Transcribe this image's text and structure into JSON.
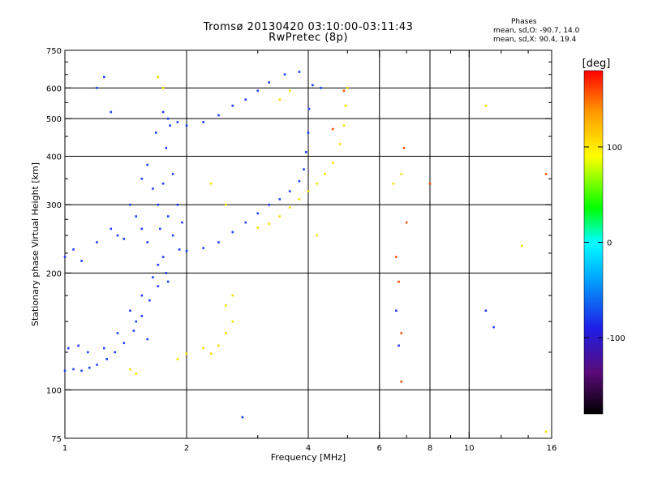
{
  "header": {
    "title_line1": "Tromsø 20130420 03:10:00-03:11:43",
    "title_line2": "RwPretec (8p)",
    "stats_heading": "Phases",
    "stats_o": "mean, sd,O: -90.7, 14.0",
    "stats_x": "mean, sd,X: 90.4, 19.4"
  },
  "chart_data": {
    "type": "scatter",
    "xlabel": "Frequency [MHz]",
    "ylabel": "Stationary phase Virtual Height [km]",
    "xscale": "log",
    "yscale": "log",
    "xlim": [
      1,
      16
    ],
    "ylim": [
      75,
      750
    ],
    "x_ticks": [
      1,
      2,
      4,
      6,
      8,
      10,
      16
    ],
    "y_ticks": [
      75,
      100,
      200,
      300,
      400,
      500,
      600,
      750
    ],
    "x_minor_ticks": [
      3,
      5,
      7,
      9,
      12,
      14
    ],
    "y_minor_ticks": [
      125,
      150,
      175,
      225,
      250,
      275,
      350,
      450,
      550,
      650,
      700
    ],
    "grid_x": [
      2,
      4,
      6,
      8,
      10
    ],
    "grid_y": [
      100,
      200,
      300,
      400,
      500,
      600
    ],
    "colorbar": {
      "label": "[deg]",
      "range": [
        -180,
        180
      ],
      "ticks": [
        100,
        0,
        -100
      ],
      "colormap": [
        "#000000",
        "#5a0a78",
        "#1e1ee6",
        "#00aaff",
        "#00ffff",
        "#00ff00",
        "#ffff00",
        "#ff9900",
        "#ff0000"
      ]
    },
    "series": [
      {
        "component": "O",
        "color": "#1e3cff",
        "traces": [
          {
            "segment": "low E-region trace",
            "points": [
              [
                1.0,
                112
              ],
              [
                1.05,
                113
              ],
              [
                1.1,
                112
              ],
              [
                1.15,
                114
              ],
              [
                1.2,
                116
              ],
              [
                1.27,
                120
              ],
              [
                1.33,
                125
              ],
              [
                1.4,
                132
              ],
              [
                1.48,
                142
              ],
              [
                1.55,
                155
              ],
              [
                1.62,
                170
              ],
              [
                1.7,
                185
              ],
              [
                1.78,
                200
              ]
            ]
          },
          {
            "segment": "lower trace cloud",
            "points": [
              [
                1.02,
                128
              ],
              [
                1.08,
                130
              ],
              [
                1.14,
                125
              ],
              [
                1.25,
                128
              ],
              [
                1.35,
                140
              ],
              [
                1.45,
                160
              ],
              [
                1.5,
                150
              ],
              [
                1.6,
                135
              ],
              [
                1.55,
                175
              ],
              [
                1.65,
                195
              ],
              [
                1.7,
                210
              ],
              [
                1.75,
                220
              ],
              [
                1.8,
                190
              ]
            ]
          },
          {
            "segment": "spread F cloud",
            "points": [
              [
                1.45,
                300
              ],
              [
                1.5,
                280
              ],
              [
                1.55,
                260
              ],
              [
                1.6,
                240
              ],
              [
                1.55,
                350
              ],
              [
                1.6,
                380
              ],
              [
                1.65,
                330
              ],
              [
                1.7,
                300
              ],
              [
                1.72,
                260
              ],
              [
                1.75,
                340
              ],
              [
                1.78,
                420
              ],
              [
                1.8,
                280
              ],
              [
                1.85,
                250
              ],
              [
                1.85,
                360
              ],
              [
                1.9,
                300
              ],
              [
                1.92,
                230
              ],
              [
                1.95,
                270
              ],
              [
                1.68,
                460
              ],
              [
                1.75,
                520
              ],
              [
                1.82,
                480
              ]
            ]
          },
          {
            "segment": "F2 O-mode trace",
            "points": [
              [
                2.0,
                228
              ],
              [
                2.2,
                232
              ],
              [
                2.4,
                240
              ],
              [
                2.6,
                255
              ],
              [
                2.8,
                270
              ],
              [
                3.0,
                285
              ],
              [
                3.2,
                300
              ],
              [
                3.4,
                310
              ],
              [
                3.6,
                325
              ],
              [
                3.8,
                345
              ],
              [
                3.9,
                370
              ],
              [
                3.95,
                410
              ],
              [
                4.0,
                460
              ],
              [
                4.02,
                530
              ]
            ]
          },
          {
            "segment": "upper echoes",
            "points": [
              [
                1.8,
                500
              ],
              [
                1.9,
                490
              ],
              [
                2.0,
                480
              ],
              [
                2.2,
                490
              ],
              [
                2.4,
                510
              ],
              [
                2.6,
                540
              ],
              [
                2.8,
                560
              ],
              [
                3.0,
                590
              ],
              [
                3.2,
                620
              ],
              [
                3.5,
                650
              ],
              [
                3.8,
                660
              ],
              [
                4.1,
                610
              ],
              [
                4.3,
                600
              ]
            ]
          },
          {
            "segment": "low-frequency scatter",
            "points": [
              [
                1.0,
                220
              ],
              [
                1.05,
                230
              ],
              [
                1.1,
                215
              ],
              [
                1.2,
                240
              ],
              [
                1.3,
                260
              ],
              [
                1.35,
                250
              ],
              [
                1.4,
                245
              ],
              [
                1.2,
                600
              ],
              [
                1.25,
                640
              ],
              [
                1.3,
                520
              ],
              [
                2.75,
                85
              ],
              [
                6.6,
                160
              ],
              [
                6.7,
                130
              ],
              [
                11.0,
                160
              ],
              [
                11.5,
                145
              ]
            ]
          }
        ]
      },
      {
        "component": "X",
        "color": "#f0e000",
        "traces": [
          {
            "segment": "F2 X-mode trace",
            "points": [
              [
                3.0,
                262
              ],
              [
                3.2,
                268
              ],
              [
                3.4,
                280
              ],
              [
                3.6,
                295
              ],
              [
                3.8,
                310
              ],
              [
                4.0,
                325
              ],
              [
                4.2,
                340
              ],
              [
                4.4,
                360
              ],
              [
                4.6,
                385
              ],
              [
                4.8,
                430
              ],
              [
                4.9,
                480
              ],
              [
                4.95,
                540
              ],
              [
                5.0,
                600
              ]
            ]
          },
          {
            "segment": "E-region patches",
            "points": [
              [
                1.9,
                120
              ],
              [
                2.0,
                124
              ],
              [
                2.2,
                128
              ],
              [
                2.3,
                124
              ],
              [
                2.4,
                130
              ],
              [
                2.5,
                140
              ],
              [
                2.6,
                150
              ],
              [
                2.5,
                165
              ],
              [
                2.6,
                175
              ],
              [
                1.5,
                110
              ],
              [
                1.45,
                113
              ]
            ]
          },
          {
            "segment": "scattered echoes",
            "points": [
              [
                2.3,
                340
              ],
              [
                2.5,
                300
              ],
              [
                3.4,
                560
              ],
              [
                3.6,
                590
              ],
              [
                1.7,
                640
              ],
              [
                1.75,
                600
              ],
              [
                4.2,
                250
              ],
              [
                6.5,
                340
              ],
              [
                6.8,
                360
              ],
              [
                11.0,
                540
              ],
              [
                13.5,
                235
              ],
              [
                15.5,
                78
              ]
            ]
          }
        ]
      },
      {
        "component": "other",
        "color": "#ff5000",
        "traces": [
          {
            "segment": "isolated echoes",
            "points": [
              [
                6.6,
                220
              ],
              [
                6.7,
                190
              ],
              [
                6.8,
                140
              ],
              [
                6.8,
                105
              ],
              [
                6.9,
                420
              ],
              [
                7.0,
                270
              ],
              [
                8.0,
                340
              ],
              [
                15.5,
                360
              ],
              [
                4.9,
                590
              ],
              [
                4.6,
                470
              ]
            ]
          }
        ]
      }
    ]
  }
}
